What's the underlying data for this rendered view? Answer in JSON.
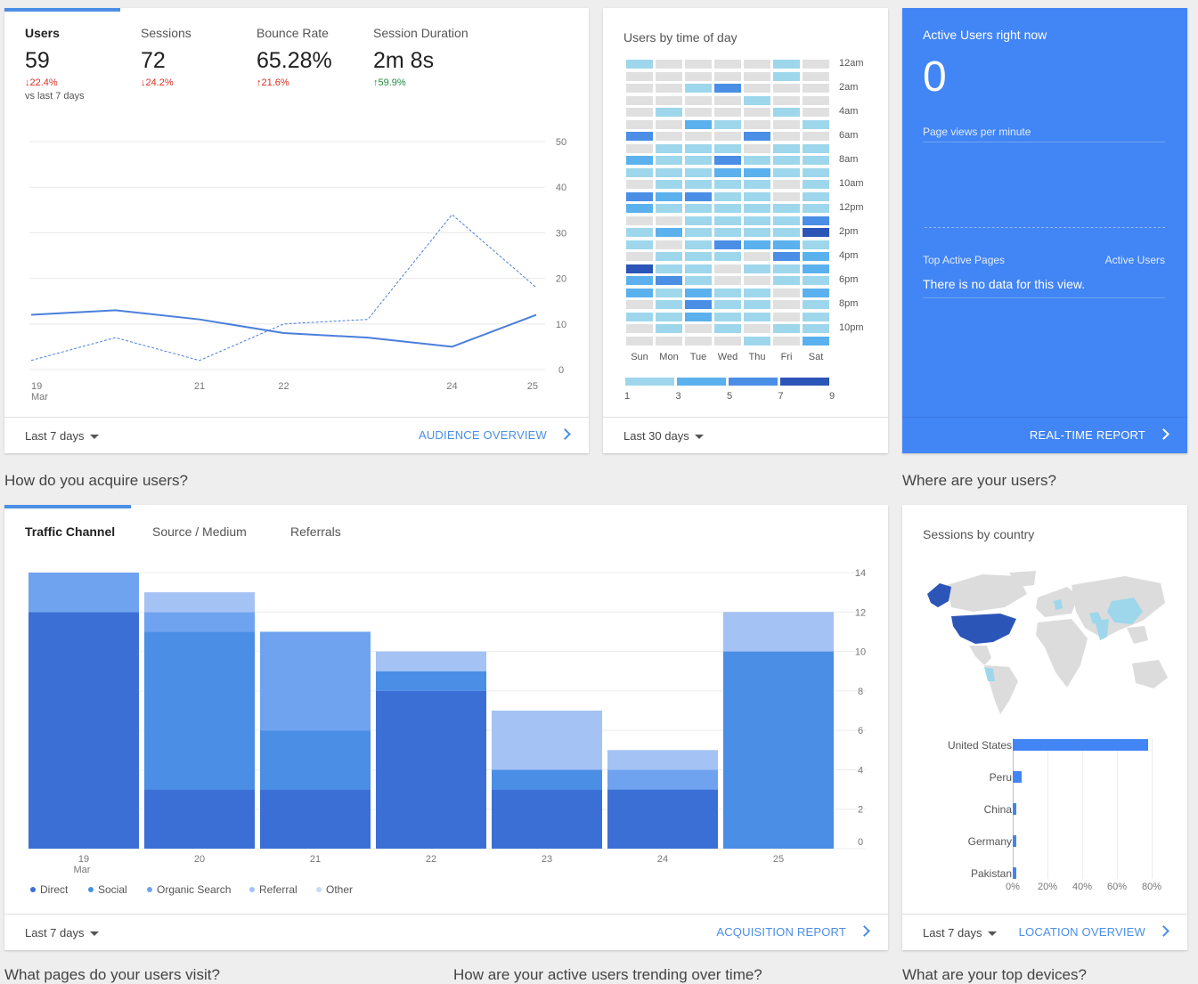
{
  "audience": {
    "metrics": [
      {
        "label": "Users",
        "value": "59",
        "change": "↓22.4%",
        "direction": "down",
        "note": "vs last 7 days"
      },
      {
        "label": "Sessions",
        "value": "72",
        "change": "↓24.2%",
        "direction": "down",
        "note": ""
      },
      {
        "label": "Bounce Rate",
        "value": "65.28%",
        "change": "↑21.6%",
        "direction": "up_bad",
        "note": ""
      },
      {
        "label": "Session Duration",
        "value": "2m 8s",
        "change": "↑59.9%",
        "direction": "up_good",
        "note": ""
      }
    ],
    "date_range": "Last 7 days",
    "link": "AUDIENCE OVERVIEW"
  },
  "users_chart": {
    "type": "line",
    "x_labels": [
      "19",
      "21",
      "22",
      "24",
      "25"
    ],
    "x_sublabel": "Mar",
    "x": [
      "19",
      "20",
      "21",
      "22",
      "23",
      "24",
      "25"
    ],
    "y_ticks": [
      "0",
      "10",
      "20",
      "30",
      "40",
      "50"
    ],
    "ylim": [
      0,
      50
    ],
    "series": [
      {
        "style": "solid",
        "values": [
          12,
          13,
          11,
          8,
          7,
          5,
          12
        ]
      },
      {
        "style": "dashed",
        "values": [
          2,
          7,
          2,
          10,
          11,
          34,
          18
        ]
      }
    ]
  },
  "time_of_day": {
    "title": "Users by time of day",
    "days": [
      "Sun",
      "Mon",
      "Tue",
      "Wed",
      "Thu",
      "Fri",
      "Sat"
    ],
    "hour_labels": [
      "12am",
      "2am",
      "4am",
      "6am",
      "8am",
      "10am",
      "12pm",
      "2pm",
      "4pm",
      "6pm",
      "8pm",
      "10pm"
    ],
    "legend": [
      "1",
      "3",
      "5",
      "7",
      "9"
    ],
    "colors": [
      "#e0e0e0",
      "#9ed7ec",
      "#5ab1ee",
      "#4a8ee6",
      "#3b6fd6",
      "#2c55b8"
    ],
    "date_range": "Last 30 days"
  },
  "realtime": {
    "title": "Active Users right now",
    "count": "0",
    "pageviews_label": "Page views per minute",
    "top_pages_label": "Top Active Pages",
    "active_users_label": "Active Users",
    "empty_text": "There is no data for this view.",
    "link": "REAL-TIME REPORT"
  },
  "acquisition": {
    "section_title": "How do you acquire users?",
    "tabs": [
      "Traffic Channel",
      "Source / Medium",
      "Referrals"
    ],
    "date_range": "Last 7 days",
    "link": "ACQUISITION REPORT"
  },
  "chart_data": [
    {
      "type": "bar",
      "stacked": true,
      "categories": [
        "19",
        "20",
        "21",
        "22",
        "23",
        "24",
        "25"
      ],
      "x_sublabel": "Mar",
      "ylim": [
        0,
        14
      ],
      "y_ticks": [
        "0",
        "2",
        "4",
        "6",
        "8",
        "10",
        "12",
        "14"
      ],
      "series": [
        {
          "name": "Direct",
          "color": "#3b6fd6",
          "values": [
            12,
            3,
            3,
            8,
            3,
            3,
            0
          ]
        },
        {
          "name": "Social",
          "color": "#4a8ee6",
          "values": [
            0,
            8,
            3,
            1,
            1,
            0,
            10
          ]
        },
        {
          "name": "Organic Search",
          "color": "#6fa3ef",
          "values": [
            2,
            1,
            5,
            0,
            0,
            1,
            0
          ]
        },
        {
          "name": "Referral",
          "color": "#a4c2f4",
          "values": [
            0,
            1,
            0,
            1,
            3,
            1,
            2
          ]
        },
        {
          "name": "Other",
          "color": "#c6d9f7",
          "values": [
            0,
            0,
            0,
            0,
            0,
            0,
            0
          ]
        }
      ],
      "legend": "bottom"
    },
    {
      "type": "bar",
      "orientation": "horizontal",
      "categories": [
        "United States",
        "Peru",
        "China",
        "Germany",
        "Pakistan"
      ],
      "values": [
        78,
        5,
        2,
        2,
        2
      ],
      "unit": "%",
      "x_ticks": [
        "0%",
        "20%",
        "40%",
        "60%",
        "80%"
      ],
      "xlim": [
        0,
        80
      ]
    }
  ],
  "location": {
    "section_title": "Where are your users?",
    "title": "Sessions by country",
    "date_range": "Last 7 days",
    "link": "LOCATION OVERVIEW",
    "colors": {
      "us": "#2c55b8",
      "light": "#9ed7ec",
      "land": "#dcdcdc"
    }
  },
  "bottom_sections": [
    "What pages do your users visit?",
    "How are your active users trending over time?",
    "What are your top devices?"
  ]
}
